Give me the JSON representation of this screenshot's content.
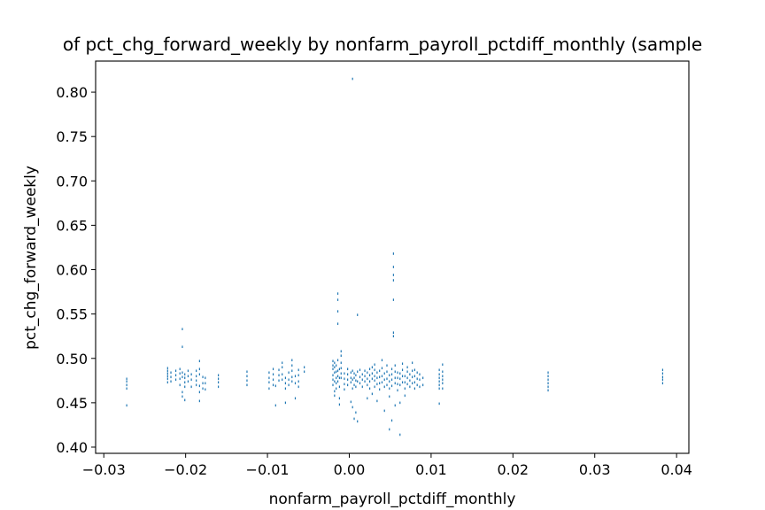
{
  "chart_data": {
    "type": "scatter",
    "title": "of pct_chg_forward_weekly by nonfarm_payroll_pctdiff_monthly (sample",
    "xlabel": "nonfarm_payroll_pctdiff_monthly",
    "ylabel": "pct_chg_forward_weekly",
    "xlim": [
      -0.031,
      0.0415
    ],
    "ylim": [
      0.393,
      0.835
    ],
    "xticks": [
      -0.03,
      -0.02,
      -0.01,
      0.0,
      0.01,
      0.02,
      0.03,
      0.04
    ],
    "xtick_labels": [
      "−0.03",
      "−0.02",
      "−0.01",
      "0.00",
      "0.01",
      "0.02",
      "0.03",
      "0.04"
    ],
    "yticks": [
      0.4,
      0.45,
      0.5,
      0.55,
      0.6,
      0.65,
      0.7,
      0.75,
      0.8
    ],
    "ytick_labels": [
      "0.40",
      "0.45",
      "0.50",
      "0.55",
      "0.60",
      "0.65",
      "0.70",
      "0.75",
      "0.80"
    ],
    "grid": false,
    "marker_color": "#1f77b4",
    "series": [
      {
        "points": [
          [
            -0.0272,
            0.447
          ],
          [
            -0.0272,
            0.466
          ],
          [
            -0.0272,
            0.47
          ],
          [
            -0.0272,
            0.474
          ],
          [
            -0.0272,
            0.477
          ],
          [
            -0.0222,
            0.473
          ],
          [
            -0.0222,
            0.477
          ],
          [
            -0.0222,
            0.48
          ],
          [
            -0.0222,
            0.483
          ],
          [
            -0.0222,
            0.486
          ],
          [
            -0.0222,
            0.489
          ],
          [
            -0.0218,
            0.474
          ],
          [
            -0.0218,
            0.479
          ],
          [
            -0.0218,
            0.484
          ],
          [
            -0.0212,
            0.476
          ],
          [
            -0.0212,
            0.481
          ],
          [
            -0.0212,
            0.486
          ],
          [
            -0.0207,
            0.47
          ],
          [
            -0.0207,
            0.477
          ],
          [
            -0.0207,
            0.483
          ],
          [
            -0.0207,
            0.488
          ],
          [
            -0.0204,
            0.533
          ],
          [
            -0.0204,
            0.513
          ],
          [
            -0.0204,
            0.457
          ],
          [
            -0.0204,
            0.462
          ],
          [
            -0.0204,
            0.479
          ],
          [
            -0.0204,
            0.484
          ],
          [
            -0.0201,
            0.453
          ],
          [
            -0.0201,
            0.468
          ],
          [
            -0.0201,
            0.473
          ],
          [
            -0.0201,
            0.478
          ],
          [
            -0.0201,
            0.482
          ],
          [
            -0.0197,
            0.474
          ],
          [
            -0.0197,
            0.48
          ],
          [
            -0.0197,
            0.486
          ],
          [
            -0.0193,
            0.468
          ],
          [
            -0.0193,
            0.476
          ],
          [
            -0.0193,
            0.482
          ],
          [
            -0.0187,
            0.47
          ],
          [
            -0.0187,
            0.475
          ],
          [
            -0.0187,
            0.48
          ],
          [
            -0.0187,
            0.486
          ],
          [
            -0.0183,
            0.452
          ],
          [
            -0.0183,
            0.462
          ],
          [
            -0.0183,
            0.469
          ],
          [
            -0.0183,
            0.482
          ],
          [
            -0.0183,
            0.488
          ],
          [
            -0.0183,
            0.497
          ],
          [
            -0.0179,
            0.466
          ],
          [
            -0.0179,
            0.472
          ],
          [
            -0.0179,
            0.479
          ],
          [
            -0.0176,
            0.465
          ],
          [
            -0.0176,
            0.472
          ],
          [
            -0.0176,
            0.478
          ],
          [
            -0.016,
            0.468
          ],
          [
            -0.016,
            0.473
          ],
          [
            -0.016,
            0.477
          ],
          [
            -0.016,
            0.481
          ],
          [
            -0.0125,
            0.47
          ],
          [
            -0.0125,
            0.475
          ],
          [
            -0.0125,
            0.48
          ],
          [
            -0.0125,
            0.485
          ],
          [
            -0.0098,
            0.466
          ],
          [
            -0.0098,
            0.473
          ],
          [
            -0.0098,
            0.478
          ],
          [
            -0.0098,
            0.484
          ],
          [
            -0.0093,
            0.47
          ],
          [
            -0.0093,
            0.476
          ],
          [
            -0.0093,
            0.482
          ],
          [
            -0.0093,
            0.488
          ],
          [
            -0.009,
            0.447
          ],
          [
            -0.009,
            0.469
          ],
          [
            -0.0086,
            0.475
          ],
          [
            -0.0086,
            0.481
          ],
          [
            -0.0086,
            0.487
          ],
          [
            -0.0082,
            0.476
          ],
          [
            -0.0082,
            0.482
          ],
          [
            -0.0082,
            0.49
          ],
          [
            -0.0082,
            0.495
          ],
          [
            -0.0078,
            0.45
          ],
          [
            -0.0078,
            0.466
          ],
          [
            -0.0078,
            0.472
          ],
          [
            -0.0078,
            0.478
          ],
          [
            -0.0074,
            0.47
          ],
          [
            -0.0074,
            0.476
          ],
          [
            -0.0074,
            0.484
          ],
          [
            -0.007,
            0.474
          ],
          [
            -0.007,
            0.479
          ],
          [
            -0.007,
            0.486
          ],
          [
            -0.007,
            0.492
          ],
          [
            -0.007,
            0.498
          ],
          [
            -0.0066,
            0.455
          ],
          [
            -0.0066,
            0.472
          ],
          [
            -0.0066,
            0.48
          ],
          [
            -0.0062,
            0.468
          ],
          [
            -0.0062,
            0.474
          ],
          [
            -0.0062,
            0.481
          ],
          [
            -0.0062,
            0.487
          ],
          [
            -0.0055,
            0.485
          ],
          [
            -0.0055,
            0.49
          ],
          [
            -0.002,
            0.488
          ],
          [
            -0.002,
            0.481
          ],
          [
            -0.002,
            0.476
          ],
          [
            -0.002,
            0.47
          ],
          [
            -0.002,
            0.492
          ],
          [
            -0.002,
            0.497
          ],
          [
            -0.0018,
            0.458
          ],
          [
            -0.0018,
            0.463
          ],
          [
            -0.0018,
            0.474
          ],
          [
            -0.0018,
            0.484
          ],
          [
            -0.0018,
            0.49
          ],
          [
            -0.0018,
            0.495
          ],
          [
            -0.0016,
            0.466
          ],
          [
            -0.0016,
            0.472
          ],
          [
            -0.0016,
            0.478
          ],
          [
            -0.0016,
            0.485
          ],
          [
            -0.0016,
            0.492
          ],
          [
            -0.0014,
            0.573
          ],
          [
            -0.0014,
            0.566
          ],
          [
            -0.0014,
            0.553
          ],
          [
            -0.0014,
            0.539
          ],
          [
            -0.0014,
            0.474
          ],
          [
            -0.0014,
            0.48
          ],
          [
            -0.0014,
            0.486
          ],
          [
            -0.0014,
            0.498
          ],
          [
            -0.0012,
            0.448
          ],
          [
            -0.0012,
            0.455
          ],
          [
            -0.0012,
            0.468
          ],
          [
            -0.0012,
            0.478
          ],
          [
            -0.0012,
            0.488
          ],
          [
            -0.001,
            0.478
          ],
          [
            -0.001,
            0.483
          ],
          [
            -0.001,
            0.489
          ],
          [
            -0.001,
            0.495
          ],
          [
            -0.001,
            0.503
          ],
          [
            -0.001,
            0.508
          ],
          [
            -0.0006,
            0.465
          ],
          [
            -0.0006,
            0.471
          ],
          [
            -0.0006,
            0.477
          ],
          [
            -0.0006,
            0.483
          ],
          [
            -0.0002,
            0.47
          ],
          [
            -0.0002,
            0.476
          ],
          [
            -0.0002,
            0.482
          ],
          [
            -0.0002,
            0.488
          ],
          [
            0.0002,
            0.473
          ],
          [
            0.0002,
            0.478
          ],
          [
            0.0002,
            0.484
          ],
          [
            0.0002,
            0.451
          ],
          [
            0.0004,
            0.445
          ],
          [
            0.0004,
            0.466
          ],
          [
            0.0004,
            0.476
          ],
          [
            0.0004,
            0.486
          ],
          [
            0.0006,
            0.432
          ],
          [
            0.0006,
            0.47
          ],
          [
            0.0006,
            0.478
          ],
          [
            0.0006,
            0.483
          ],
          [
            0.0008,
            0.439
          ],
          [
            0.0008,
            0.468
          ],
          [
            0.0008,
            0.475
          ],
          [
            0.0008,
            0.481
          ],
          [
            0.001,
            0.429
          ],
          [
            0.001,
            0.549
          ],
          [
            0.001,
            0.474
          ],
          [
            0.001,
            0.485
          ],
          [
            0.0013,
            0.472
          ],
          [
            0.0013,
            0.479
          ],
          [
            0.0013,
            0.487
          ],
          [
            0.0016,
            0.468
          ],
          [
            0.0016,
            0.476
          ],
          [
            0.0016,
            0.482
          ],
          [
            0.0019,
            0.474
          ],
          [
            0.0019,
            0.48
          ],
          [
            0.0019,
            0.486
          ],
          [
            0.0022,
            0.47
          ],
          [
            0.0022,
            0.477
          ],
          [
            0.0022,
            0.484
          ],
          [
            0.0022,
            0.455
          ],
          [
            0.0025,
            0.466
          ],
          [
            0.0025,
            0.474
          ],
          [
            0.0025,
            0.481
          ],
          [
            0.0025,
            0.488
          ],
          [
            0.0028,
            0.477
          ],
          [
            0.0028,
            0.483
          ],
          [
            0.0028,
            0.49
          ],
          [
            0.0028,
            0.46
          ],
          [
            0.0031,
            0.468
          ],
          [
            0.0031,
            0.475
          ],
          [
            0.0031,
            0.48
          ],
          [
            0.0031,
            0.487
          ],
          [
            0.0031,
            0.493
          ],
          [
            0.0034,
            0.471
          ],
          [
            0.0034,
            0.478
          ],
          [
            0.0034,
            0.484
          ],
          [
            0.0034,
            0.452
          ],
          [
            0.0037,
            0.465
          ],
          [
            0.0037,
            0.472
          ],
          [
            0.0037,
            0.479
          ],
          [
            0.0037,
            0.486
          ],
          [
            0.004,
            0.473
          ],
          [
            0.004,
            0.48
          ],
          [
            0.004,
            0.489
          ],
          [
            0.004,
            0.498
          ],
          [
            0.0043,
            0.468
          ],
          [
            0.0043,
            0.476
          ],
          [
            0.0043,
            0.483
          ],
          [
            0.0043,
            0.441
          ],
          [
            0.0046,
            0.47
          ],
          [
            0.0046,
            0.477
          ],
          [
            0.0046,
            0.485
          ],
          [
            0.0046,
            0.492
          ],
          [
            0.0049,
            0.457
          ],
          [
            0.0049,
            0.466
          ],
          [
            0.0049,
            0.474
          ],
          [
            0.0049,
            0.481
          ],
          [
            0.0049,
            0.42
          ],
          [
            0.0052,
            0.469
          ],
          [
            0.0052,
            0.476
          ],
          [
            0.0052,
            0.482
          ],
          [
            0.0052,
            0.488
          ],
          [
            0.0052,
            0.43
          ],
          [
            0.0054,
            0.618
          ],
          [
            0.0054,
            0.603
          ],
          [
            0.0054,
            0.594
          ],
          [
            0.0054,
            0.588
          ],
          [
            0.0054,
            0.566
          ],
          [
            0.0054,
            0.529
          ],
          [
            0.0054,
            0.525
          ],
          [
            0.0056,
            0.472
          ],
          [
            0.0056,
            0.478
          ],
          [
            0.0056,
            0.485
          ],
          [
            0.0056,
            0.492
          ],
          [
            0.0056,
            0.447
          ],
          [
            0.0059,
            0.464
          ],
          [
            0.0059,
            0.471
          ],
          [
            0.0059,
            0.478
          ],
          [
            0.0059,
            0.484
          ],
          [
            0.0062,
            0.47
          ],
          [
            0.0062,
            0.477
          ],
          [
            0.0062,
            0.483
          ],
          [
            0.0062,
            0.414
          ],
          [
            0.0062,
            0.45
          ],
          [
            0.0065,
            0.473
          ],
          [
            0.0065,
            0.48
          ],
          [
            0.0065,
            0.487
          ],
          [
            0.0065,
            0.494
          ],
          [
            0.0068,
            0.466
          ],
          [
            0.0068,
            0.473
          ],
          [
            0.0068,
            0.48
          ],
          [
            0.0068,
            0.458
          ],
          [
            0.0071,
            0.471
          ],
          [
            0.0071,
            0.478
          ],
          [
            0.0071,
            0.485
          ],
          [
            0.0071,
            0.49
          ],
          [
            0.0074,
            0.468
          ],
          [
            0.0074,
            0.475
          ],
          [
            0.0074,
            0.482
          ],
          [
            0.0077,
            0.472
          ],
          [
            0.0077,
            0.479
          ],
          [
            0.0077,
            0.486
          ],
          [
            0.0077,
            0.495
          ],
          [
            0.008,
            0.466
          ],
          [
            0.008,
            0.473
          ],
          [
            0.008,
            0.48
          ],
          [
            0.008,
            0.487
          ],
          [
            0.0083,
            0.47
          ],
          [
            0.0083,
            0.477
          ],
          [
            0.0083,
            0.484
          ],
          [
            0.0086,
            0.468
          ],
          [
            0.0086,
            0.476
          ],
          [
            0.0086,
            0.482
          ],
          [
            0.009,
            0.47
          ],
          [
            0.009,
            0.478
          ],
          [
            0.011,
            0.487
          ],
          [
            0.011,
            0.482
          ],
          [
            0.011,
            0.478
          ],
          [
            0.011,
            0.474
          ],
          [
            0.011,
            0.47
          ],
          [
            0.011,
            0.466
          ],
          [
            0.011,
            0.449
          ],
          [
            0.0114,
            0.493
          ],
          [
            0.0114,
            0.485
          ],
          [
            0.0114,
            0.48
          ],
          [
            0.0114,
            0.476
          ],
          [
            0.0114,
            0.472
          ],
          [
            0.0114,
            0.466
          ],
          [
            0.0243,
            0.484
          ],
          [
            0.0243,
            0.48
          ],
          [
            0.0243,
            0.476
          ],
          [
            0.0243,
            0.472
          ],
          [
            0.0243,
            0.468
          ],
          [
            0.0243,
            0.464
          ],
          [
            0.0383,
            0.487
          ],
          [
            0.0383,
            0.483
          ],
          [
            0.0383,
            0.479
          ],
          [
            0.0383,
            0.476
          ],
          [
            0.0383,
            0.472
          ],
          [
            0.0004,
            0.815
          ]
        ]
      }
    ]
  }
}
